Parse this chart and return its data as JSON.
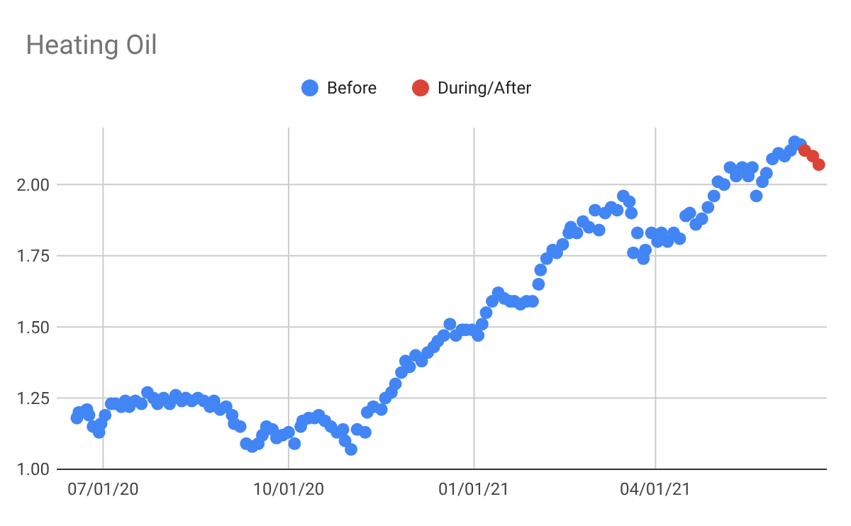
{
  "chart_data": {
    "type": "scatter",
    "title": "Heating Oil",
    "legend": "top",
    "grid": true,
    "marker": "circle",
    "xlim": [
      "2020-06-08",
      "2021-06-25"
    ],
    "xticks": [
      {
        "value": "2020-07-01",
        "label": "07/01/20"
      },
      {
        "value": "2020-10-01",
        "label": "10/01/20"
      },
      {
        "value": "2021-01-01",
        "label": "01/01/21"
      },
      {
        "value": "2021-04-01",
        "label": "04/01/21"
      }
    ],
    "ylim": [
      1,
      2.2
    ],
    "yticks": [
      {
        "value": 1,
        "label": "1.00"
      },
      {
        "value": 1.25,
        "label": "1.25"
      },
      {
        "value": 1.5,
        "label": "1.50"
      },
      {
        "value": 1.75,
        "label": "1.75"
      },
      {
        "value": 2,
        "label": "2.00"
      }
    ],
    "series": [
      {
        "name": "Before",
        "color": "#4285f4",
        "x": [
          "2020-06-18",
          "2020-06-19",
          "2020-06-23",
          "2020-06-24",
          "2020-06-26",
          "2020-06-29",
          "2020-06-30",
          "2020-07-02",
          "2020-07-05",
          "2020-07-07",
          "2020-07-10",
          "2020-07-12",
          "2020-07-14",
          "2020-07-17",
          "2020-07-20",
          "2020-07-23",
          "2020-07-26",
          "2020-07-28",
          "2020-07-31",
          "2020-08-03",
          "2020-08-06",
          "2020-08-09",
          "2020-08-11",
          "2020-08-14",
          "2020-08-17",
          "2020-08-20",
          "2020-08-23",
          "2020-08-25",
          "2020-08-28",
          "2020-08-31",
          "2020-09-03",
          "2020-09-04",
          "2020-09-07",
          "2020-09-10",
          "2020-09-13",
          "2020-09-16",
          "2020-09-18",
          "2020-09-20",
          "2020-09-23",
          "2020-09-25",
          "2020-09-28",
          "2020-10-01",
          "2020-10-04",
          "2020-10-07",
          "2020-10-08",
          "2020-10-11",
          "2020-10-14",
          "2020-10-16",
          "2020-10-19",
          "2020-10-22",
          "2020-10-25",
          "2020-10-28",
          "2020-10-29",
          "2020-11-01",
          "2020-11-04",
          "2020-11-08",
          "2020-11-09",
          "2020-11-12",
          "2020-11-16",
          "2020-11-18",
          "2020-11-21",
          "2020-11-23",
          "2020-11-26",
          "2020-11-28",
          "2020-11-30",
          "2020-12-03",
          "2020-12-06",
          "2020-12-09",
          "2020-12-12",
          "2020-12-14",
          "2020-12-17",
          "2020-12-20",
          "2020-12-23",
          "2020-12-26",
          "2020-12-28",
          "2020-12-31",
          "2021-01-03",
          "2021-01-05",
          "2021-01-07",
          "2021-01-10",
          "2021-01-13",
          "2021-01-16",
          "2021-01-19",
          "2021-01-21",
          "2021-01-24",
          "2021-01-27",
          "2021-01-30",
          "2021-02-02",
          "2021-02-03",
          "2021-02-06",
          "2021-02-09",
          "2021-02-11",
          "2021-02-14",
          "2021-02-17",
          "2021-02-18",
          "2021-02-21",
          "2021-02-24",
          "2021-02-27",
          "2021-03-02",
          "2021-03-04",
          "2021-03-07",
          "2021-03-10",
          "2021-03-13",
          "2021-03-16",
          "2021-03-19",
          "2021-03-20",
          "2021-03-21",
          "2021-03-23",
          "2021-03-26",
          "2021-03-27",
          "2021-03-30",
          "2021-04-02",
          "2021-04-04",
          "2021-04-07",
          "2021-04-10",
          "2021-04-13",
          "2021-04-16",
          "2021-04-18",
          "2021-04-21",
          "2021-04-24",
          "2021-04-27",
          "2021-04-30",
          "2021-05-02",
          "2021-05-05",
          "2021-05-08",
          "2021-05-11",
          "2021-05-14",
          "2021-05-17",
          "2021-05-19",
          "2021-05-21",
          "2021-05-24",
          "2021-05-26",
          "2021-05-29",
          "2021-06-01",
          "2021-06-04",
          "2021-06-07",
          "2021-06-09",
          "2021-06-12"
        ],
        "values": [
          1.18,
          1.2,
          1.21,
          1.19,
          1.15,
          1.13,
          1.16,
          1.19,
          1.23,
          1.23,
          1.22,
          1.24,
          1.22,
          1.24,
          1.23,
          1.27,
          1.25,
          1.23,
          1.25,
          1.23,
          1.26,
          1.24,
          1.25,
          1.24,
          1.25,
          1.24,
          1.22,
          1.24,
          1.21,
          1.22,
          1.19,
          1.16,
          1.15,
          1.09,
          1.08,
          1.09,
          1.12,
          1.15,
          1.14,
          1.11,
          1.12,
          1.13,
          1.09,
          1.15,
          1.17,
          1.18,
          1.18,
          1.19,
          1.17,
          1.15,
          1.13,
          1.14,
          1.1,
          1.07,
          1.14,
          1.13,
          1.2,
          1.22,
          1.21,
          1.25,
          1.27,
          1.3,
          1.34,
          1.38,
          1.36,
          1.4,
          1.38,
          1.41,
          1.43,
          1.45,
          1.47,
          1.51,
          1.47,
          1.49,
          1.49,
          1.49,
          1.47,
          1.51,
          1.55,
          1.59,
          1.62,
          1.6,
          1.59,
          1.59,
          1.58,
          1.59,
          1.59,
          1.65,
          1.7,
          1.74,
          1.77,
          1.76,
          1.79,
          1.83,
          1.85,
          1.83,
          1.87,
          1.85,
          1.91,
          1.84,
          1.9,
          1.92,
          1.91,
          1.96,
          1.94,
          1.9,
          1.76,
          1.83,
          1.74,
          1.77,
          1.83,
          1.8,
          1.83,
          1.8,
          1.83,
          1.81,
          1.89,
          1.9,
          1.86,
          1.88,
          1.92,
          1.96,
          2.01,
          2,
          2.06,
          2.03,
          2.06,
          2.03,
          2.06,
          1.96,
          2.01,
          2.04,
          2.09,
          2.11,
          2.1,
          2.12,
          2.15,
          2.14
        ]
      },
      {
        "name": "During/After",
        "color": "#db4437",
        "x": [
          "2021-06-14",
          "2021-06-18",
          "2021-06-21"
        ],
        "values": [
          2.12,
          2.1,
          2.07
        ]
      }
    ]
  }
}
